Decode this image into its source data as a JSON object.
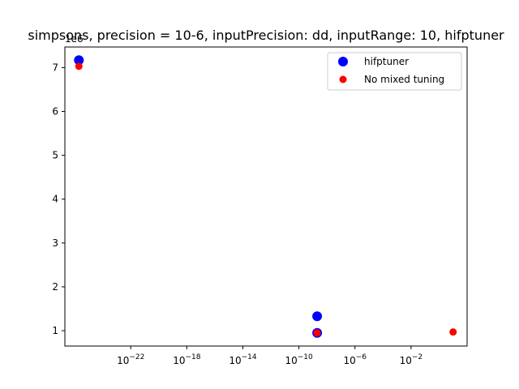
{
  "chart_data": {
    "type": "scatter",
    "title": "simpsons, precision = 10-6, inputPrecision: dd, inputRange: 10, hifptuner",
    "xlabel": "",
    "ylabel": "",
    "x_scale": "log",
    "xlim": [
      2e-27,
      100.0
    ],
    "ylim": [
      650000.0,
      7470000.0
    ],
    "x_ticks": [
      {
        "value": 1e-22,
        "label": "10",
        "exp": "−22"
      },
      {
        "value": 1e-18,
        "label": "10",
        "exp": "−18"
      },
      {
        "value": 1e-14,
        "label": "10",
        "exp": "−14"
      },
      {
        "value": 1e-10,
        "label": "10",
        "exp": "−10"
      },
      {
        "value": 1e-06,
        "label": "10",
        "exp": "−6"
      },
      {
        "value": 0.01,
        "label": "10",
        "exp": "−2"
      }
    ],
    "y_ticks": [
      {
        "value": 1000000.0,
        "label": "1"
      },
      {
        "value": 2000000.0,
        "label": "2"
      },
      {
        "value": 3000000.0,
        "label": "3"
      },
      {
        "value": 4000000.0,
        "label": "4"
      },
      {
        "value": 5000000.0,
        "label": "5"
      },
      {
        "value": 6000000.0,
        "label": "6"
      },
      {
        "value": 7000000.0,
        "label": "7"
      }
    ],
    "y_offset_label": "1e6",
    "grid": false,
    "legend_position": "top-right",
    "series": [
      {
        "name": "hifptuner",
        "color": "#0000ff",
        "marker_size": "large",
        "points": [
          {
            "x": 2e-26,
            "y": 7170000.0
          },
          {
            "x": 2e-09,
            "y": 1330000.0
          },
          {
            "x": 2e-09,
            "y": 950000.0
          }
        ]
      },
      {
        "name": "No mixed tuning",
        "color": "#ff0000",
        "marker_size": "small",
        "points": [
          {
            "x": 2e-26,
            "y": 7030000.0
          },
          {
            "x": 2e-09,
            "y": 950000.0
          },
          {
            "x": 10,
            "y": 970000.0
          }
        ]
      }
    ]
  }
}
